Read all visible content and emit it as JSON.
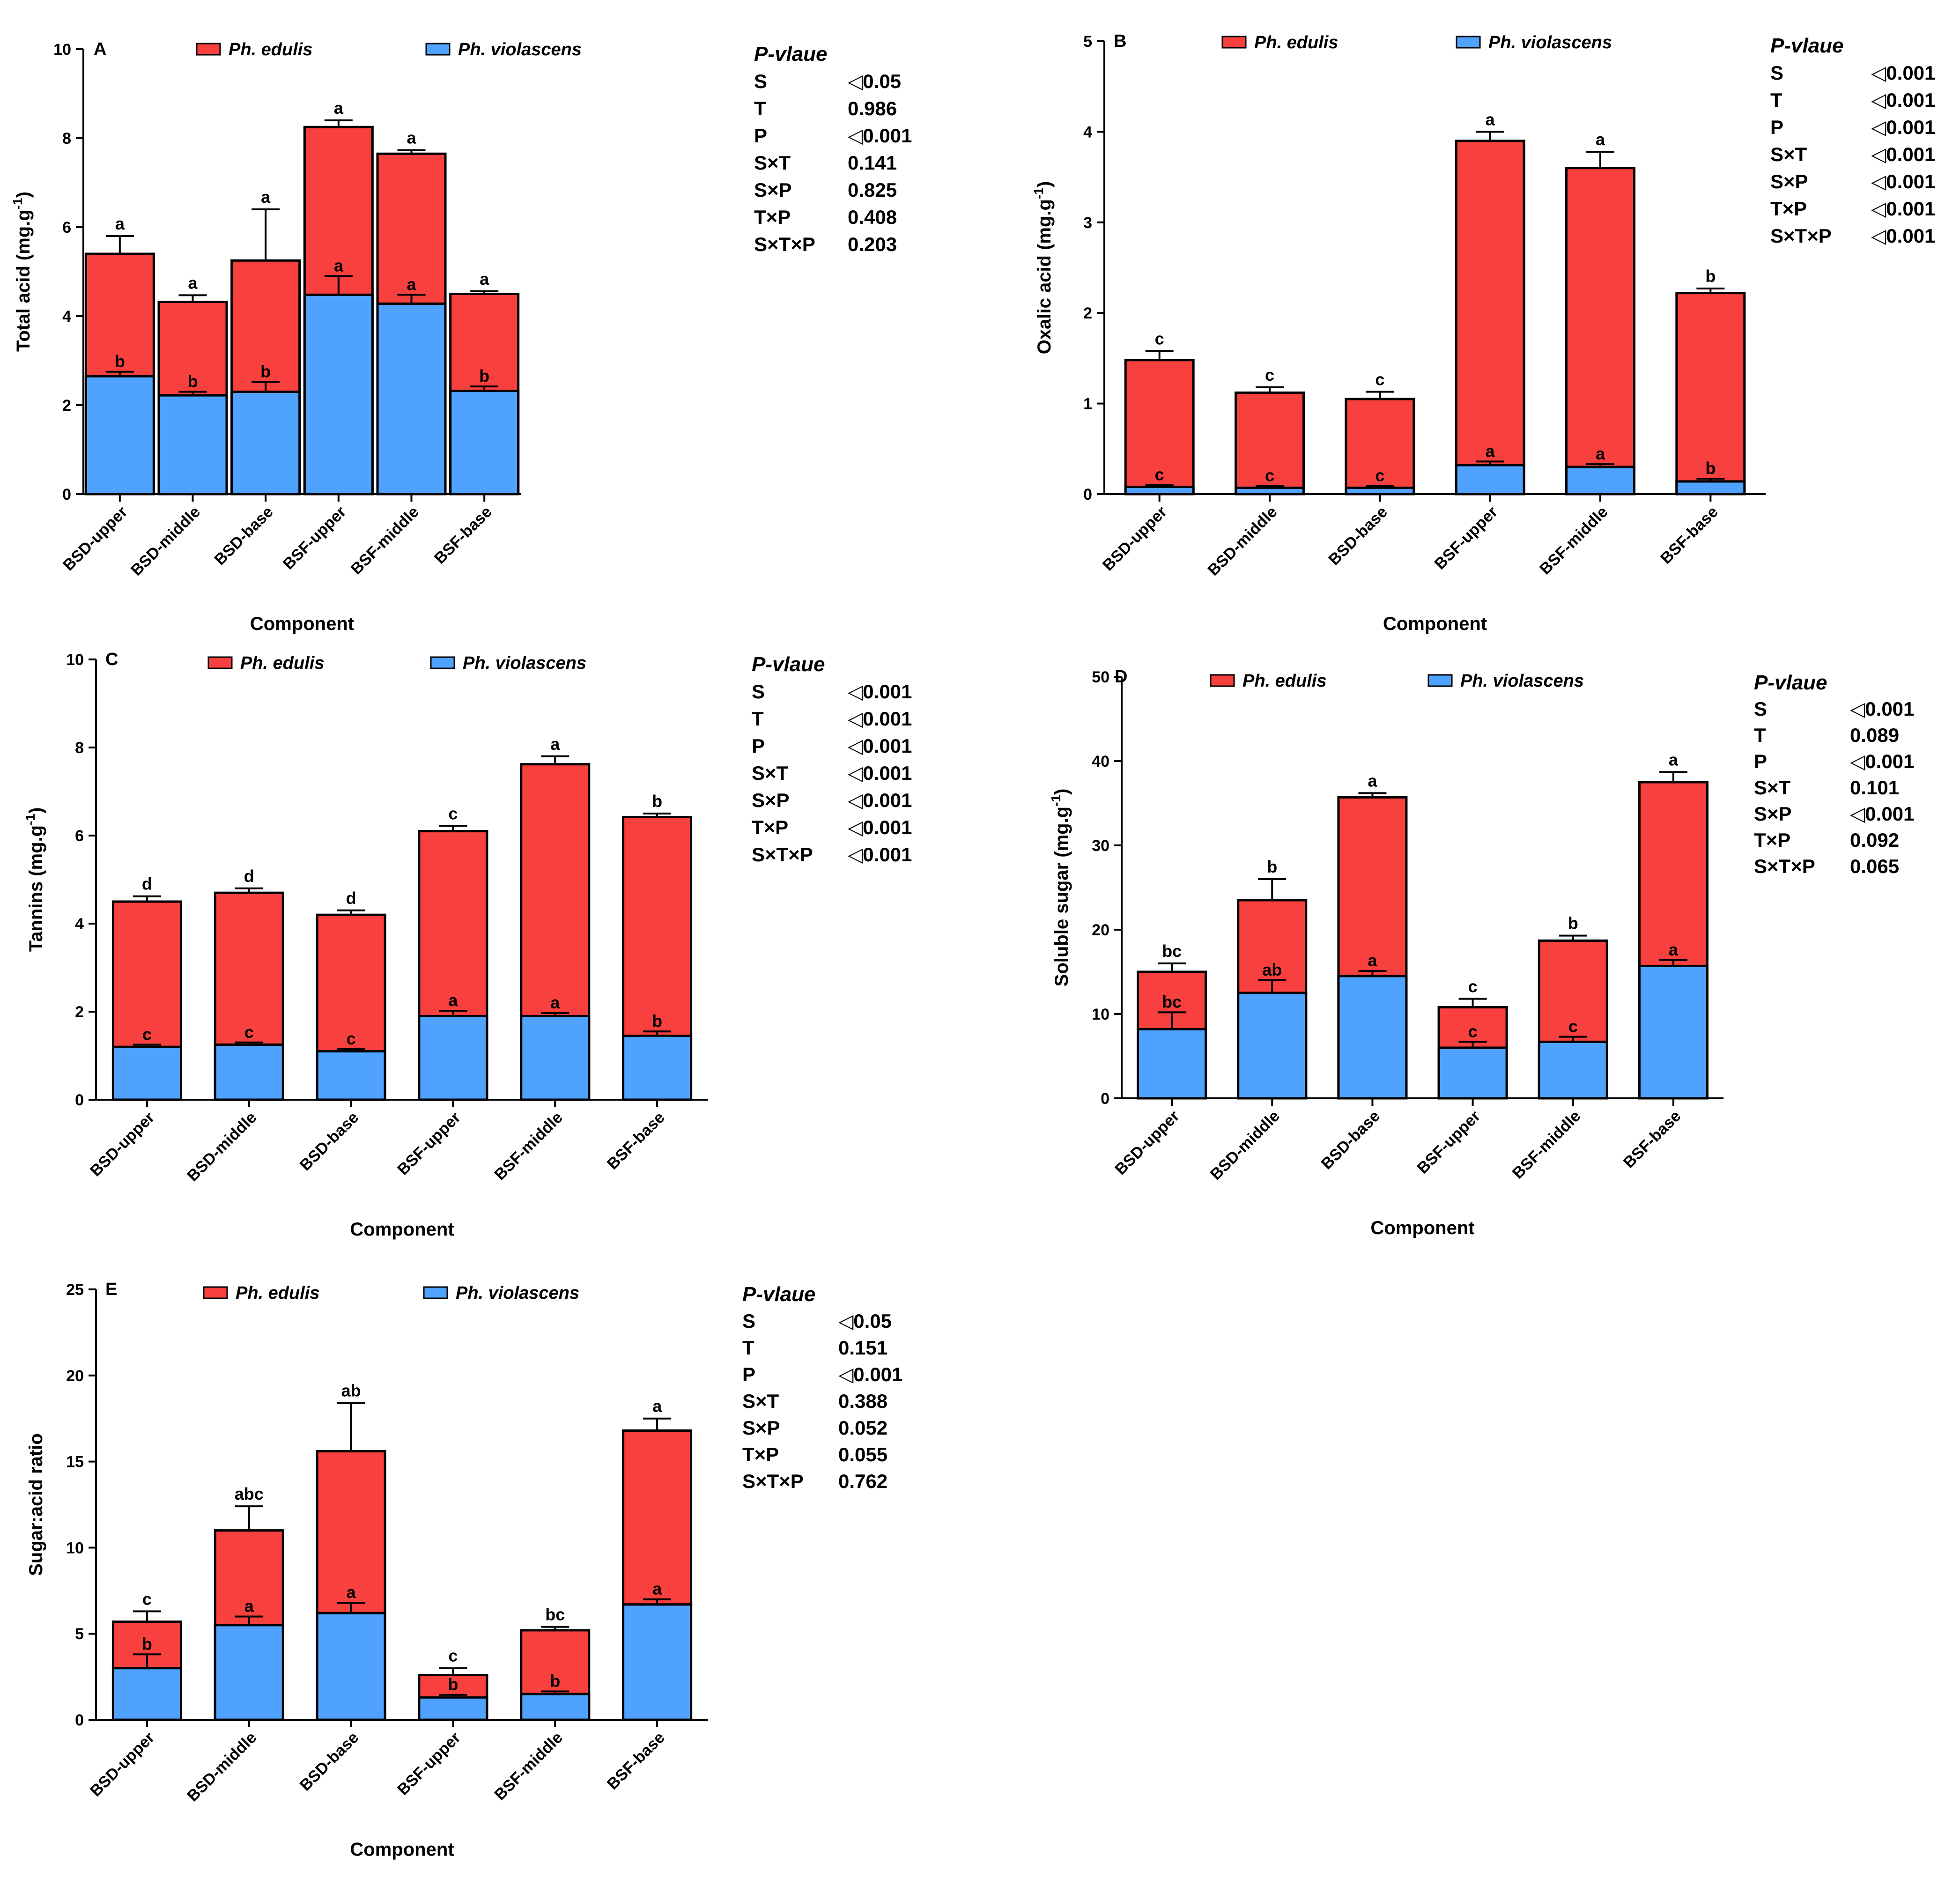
{
  "colors": {
    "edulis": "#f8403f",
    "violascens": "#4fa3ff",
    "stroke": "#000000"
  },
  "chart_data": [
    {
      "type": "bar",
      "stacked": true,
      "panel": "A",
      "ylabel": "Total acid (mg.g",
      "ylabel_sup": "-1",
      "ylabel_close": ")",
      "xlabel": "Component",
      "ylim": [
        0,
        10
      ],
      "yticks": [
        "0",
        "2",
        "4",
        "6",
        "8",
        "10"
      ],
      "categories": [
        "BSD-upper",
        "BSD-middle",
        "BSD-base",
        "BSF-upper",
        "BSF-middle",
        "BSF-base"
      ],
      "series": [
        {
          "name": "Ph. edulis",
          "total": [
            5.4,
            4.32,
            5.25,
            8.25,
            7.65,
            4.5
          ],
          "error": [
            0.4,
            0.15,
            1.15,
            0.15,
            0.08,
            0.06
          ],
          "letters": [
            "a",
            "a",
            "a",
            "a",
            "a",
            "a"
          ]
        },
        {
          "name": "Ph. violascens",
          "values": [
            2.65,
            2.22,
            2.3,
            4.48,
            4.28,
            2.32
          ],
          "error": [
            0.1,
            0.08,
            0.22,
            0.42,
            0.2,
            0.1
          ],
          "letters": [
            "b",
            "b",
            "b",
            "a",
            "a",
            "b"
          ]
        }
      ],
      "legend": [
        "Ph. edulis",
        "Ph. violascens"
      ],
      "pvalue": {
        "title": "P-vlaue",
        "rows": [
          {
            "factor": "S",
            "value": "◁0.05"
          },
          {
            "factor": "T",
            "value": "0.986"
          },
          {
            "factor": "P",
            "value": "◁0.001"
          },
          {
            "factor": "S×T",
            "value": "0.141"
          },
          {
            "factor": "S×P",
            "value": "0.825"
          },
          {
            "factor": "T×P",
            "value": "0.408"
          },
          {
            "factor": "S×T×P",
            "value": "0.203"
          }
        ]
      }
    },
    {
      "type": "bar",
      "stacked": true,
      "panel": "B",
      "ylabel": "Oxalic acid (mg.g",
      "ylabel_sup": "-1",
      "ylabel_close": ")",
      "xlabel": "Component",
      "ylim": [
        0,
        5
      ],
      "yticks": [
        "0",
        "1",
        "2",
        "3",
        "4",
        "5"
      ],
      "categories": [
        "BSD-upper",
        "BSD-middle",
        "BSD-base",
        "BSF-upper",
        "BSF-middle",
        "BSF-base"
      ],
      "series": [
        {
          "name": "Ph. edulis",
          "total": [
            1.48,
            1.12,
            1.05,
            3.9,
            3.6,
            2.22
          ],
          "error": [
            0.1,
            0.06,
            0.08,
            0.1,
            0.18,
            0.05
          ],
          "letters": [
            "c",
            "c",
            "c",
            "a",
            "a",
            "b"
          ]
        },
        {
          "name": "Ph. violascens",
          "values": [
            0.08,
            0.07,
            0.07,
            0.32,
            0.3,
            0.14
          ],
          "error": [
            0.02,
            0.02,
            0.02,
            0.04,
            0.03,
            0.03
          ],
          "letters": [
            "c",
            "c",
            "c",
            "a",
            "a",
            "b"
          ]
        }
      ],
      "legend": [
        "Ph. edulis",
        "Ph. violascens"
      ],
      "pvalue": {
        "title": "P-vlaue",
        "rows": [
          {
            "factor": "S",
            "value": "◁0.001"
          },
          {
            "factor": "T",
            "value": "◁0.001"
          },
          {
            "factor": "P",
            "value": "◁0.001"
          },
          {
            "factor": "S×T",
            "value": "◁0.001"
          },
          {
            "factor": "S×P",
            "value": "◁0.001"
          },
          {
            "factor": "T×P",
            "value": "◁0.001"
          },
          {
            "factor": "S×T×P",
            "value": "◁0.001"
          }
        ]
      }
    },
    {
      "type": "bar",
      "stacked": true,
      "panel": "C",
      "ylabel": "Tannins (mg.g",
      "ylabel_sup": "-1",
      "ylabel_close": ")",
      "xlabel": "Component",
      "ylim": [
        0,
        10
      ],
      "yticks": [
        "0",
        "2",
        "4",
        "6",
        "8",
        "10"
      ],
      "categories": [
        "BSD-upper",
        "BSD-middle",
        "BSD-base",
        "BSF-upper",
        "BSF-middle",
        "BSF-base"
      ],
      "series": [
        {
          "name": "Ph. edulis",
          "total": [
            4.5,
            4.7,
            4.2,
            6.1,
            7.62,
            6.42
          ],
          "error": [
            0.12,
            0.1,
            0.1,
            0.12,
            0.18,
            0.08
          ],
          "letters": [
            "d",
            "d",
            "d",
            "c",
            "a",
            "b"
          ]
        },
        {
          "name": "Ph. violascens",
          "values": [
            1.2,
            1.25,
            1.1,
            1.9,
            1.9,
            1.45
          ],
          "error": [
            0.05,
            0.05,
            0.05,
            0.12,
            0.07,
            0.1
          ],
          "letters": [
            "c",
            "c",
            "c",
            "a",
            "a",
            "b"
          ]
        }
      ],
      "legend": [
        "Ph. edulis",
        "Ph. violascens"
      ],
      "pvalue": {
        "title": "P-vlaue",
        "rows": [
          {
            "factor": "S",
            "value": "◁0.001"
          },
          {
            "factor": "T",
            "value": "◁0.001"
          },
          {
            "factor": "P",
            "value": "◁0.001"
          },
          {
            "factor": "S×T",
            "value": "◁0.001"
          },
          {
            "factor": "S×P",
            "value": "◁0.001"
          },
          {
            "factor": "T×P",
            "value": "◁0.001"
          },
          {
            "factor": "S×T×P",
            "value": "◁0.001"
          }
        ]
      }
    },
    {
      "type": "bar",
      "stacked": true,
      "panel": "D",
      "ylabel": "Soluble sugar (mg.g",
      "ylabel_sup": "-1",
      "ylabel_close": ")",
      "xlabel": "Component",
      "ylim": [
        0,
        50
      ],
      "yticks": [
        "0",
        "10",
        "20",
        "30",
        "40",
        "50"
      ],
      "categories": [
        "BSD-upper",
        "BSD-middle",
        "BSD-base",
        "BSF-upper",
        "BSF-middle",
        "BSF-base"
      ],
      "series": [
        {
          "name": "Ph. edulis",
          "total": [
            15.0,
            23.5,
            35.7,
            10.8,
            18.7,
            37.5
          ],
          "error": [
            1.0,
            2.5,
            0.5,
            1.0,
            0.6,
            1.2
          ],
          "letters": [
            "bc",
            "b",
            "a",
            "c",
            "b",
            "a"
          ]
        },
        {
          "name": "Ph. violascens",
          "values": [
            8.2,
            12.5,
            14.5,
            6.0,
            6.7,
            15.7
          ],
          "error": [
            2.0,
            1.5,
            0.6,
            0.7,
            0.6,
            0.7
          ],
          "letters": [
            "bc",
            "ab",
            "a",
            "c",
            "c",
            "a"
          ]
        }
      ],
      "legend": [
        "Ph. edulis",
        "Ph. violascens"
      ],
      "pvalue": {
        "title": "P-vlaue",
        "rows": [
          {
            "factor": "S",
            "value": "◁0.001"
          },
          {
            "factor": "T",
            "value": "0.089"
          },
          {
            "factor": "P",
            "value": "◁0.001"
          },
          {
            "factor": "S×T",
            "value": "0.101"
          },
          {
            "factor": "S×P",
            "value": "◁0.001"
          },
          {
            "factor": "T×P",
            "value": "0.092"
          },
          {
            "factor": "S×T×P",
            "value": "0.065"
          }
        ]
      }
    },
    {
      "type": "bar",
      "stacked": true,
      "panel": "E",
      "ylabel": "Sugar:acid ratio",
      "ylabel_sup": "",
      "ylabel_close": "",
      "xlabel": "Component",
      "ylim": [
        0,
        25
      ],
      "yticks": [
        "0",
        "5",
        "10",
        "15",
        "20",
        "25"
      ],
      "categories": [
        "BSD-upper",
        "BSD-middle",
        "BSD-base",
        "BSF-upper",
        "BSF-middle",
        "BSF-base"
      ],
      "series": [
        {
          "name": "Ph. edulis",
          "total": [
            5.7,
            11.0,
            15.6,
            2.6,
            5.2,
            16.8
          ],
          "error": [
            0.6,
            1.4,
            2.8,
            0.4,
            0.2,
            0.7
          ],
          "letters": [
            "c",
            "abc",
            "ab",
            "c",
            "bc",
            "a"
          ]
        },
        {
          "name": "Ph. violascens",
          "values": [
            3.0,
            5.5,
            6.2,
            1.3,
            1.5,
            6.7
          ],
          "error": [
            0.8,
            0.5,
            0.6,
            0.15,
            0.15,
            0.3
          ],
          "letters": [
            "b",
            "a",
            "a",
            "b",
            "b",
            "a"
          ]
        }
      ],
      "legend": [
        "Ph. edulis",
        "Ph. violascens"
      ],
      "pvalue": {
        "title": "P-vlaue",
        "rows": [
          {
            "factor": "S",
            "value": "◁0.05"
          },
          {
            "factor": "T",
            "value": "0.151"
          },
          {
            "factor": "P",
            "value": "◁0.001"
          },
          {
            "factor": "S×T",
            "value": "0.388"
          },
          {
            "factor": "S×P",
            "value": "0.052"
          },
          {
            "factor": "T×P",
            "value": "0.055"
          },
          {
            "factor": "S×T×P",
            "value": "0.762"
          }
        ]
      }
    }
  ]
}
